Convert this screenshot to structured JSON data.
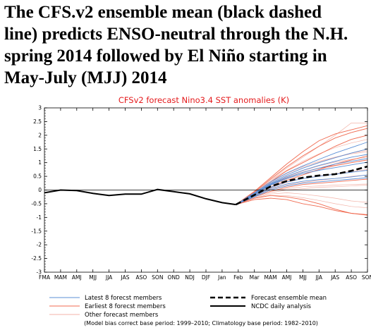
{
  "headline": [
    "The CFS.v2 ensemble mean (black dashed",
    "line) predicts ENSO-neutral through the N.H.",
    "spring 2014 followed by El Niño starting in",
    "May-July (MJJ) 2014"
  ],
  "colors": {
    "latest": "#5b8fd6",
    "earliest": "#f06a50",
    "other": "#f3b3a8",
    "mean": "#000000",
    "observed": "#000000",
    "title": "#e41a1c"
  },
  "legend": {
    "latest_label": "Latest 8 forecst members",
    "earliest_label": "Earliest 8 forecst members",
    "other_label": "Other forecast members",
    "mean_label": "Forecast ensemble mean",
    "observed_label": "NCDC daily analysis"
  },
  "footnote": "(Model bias correct base period: 1999–2010; Climatology base period: 1982–2010)",
  "chart_data": {
    "type": "line",
    "title": "CFSv2 forecast Nino3.4 SST anomalies (K)",
    "categories": [
      "FMA",
      "MAM",
      "AMJ",
      "MJJ",
      "JJA",
      "JAS",
      "ASO",
      "SON",
      "OND",
      "NDJ",
      "DJF",
      "Jan",
      "Feb",
      "Mar",
      "MAM",
      "AMJ",
      "MJJ",
      "JJA",
      "JAS",
      "ASO",
      "SON"
    ],
    "ylim": [
      -3,
      3
    ],
    "yticks": [
      -3,
      -2.5,
      -2,
      -1.5,
      -1,
      -0.5,
      0,
      0.5,
      1,
      1.5,
      2,
      2.5,
      3
    ],
    "grid": false,
    "legend_position": "bottom",
    "observed": {
      "x_index": [
        0,
        1,
        2,
        3,
        4,
        5,
        6,
        7,
        8,
        9,
        10,
        11,
        11.85
      ],
      "values": [
        -0.1,
        0.0,
        -0.02,
        -0.12,
        -0.2,
        -0.15,
        -0.15,
        0.02,
        -0.06,
        -0.14,
        -0.32,
        -0.46,
        -0.53
      ]
    },
    "ensemble_mean": {
      "x_index": [
        11.85,
        13,
        14,
        15,
        16,
        17,
        18,
        19,
        20
      ],
      "values": [
        -0.53,
        -0.18,
        0.13,
        0.33,
        0.45,
        0.53,
        0.58,
        0.7,
        0.86
      ]
    },
    "members": {
      "x_index": [
        11.85,
        13,
        14,
        15,
        16,
        17,
        18,
        19,
        20
      ],
      "latest": [
        [
          -0.53,
          -0.12,
          0.25,
          0.55,
          0.8,
          1.0,
          1.18,
          1.35,
          1.5
        ],
        [
          -0.53,
          -0.15,
          0.2,
          0.45,
          0.65,
          0.8,
          0.95,
          1.05,
          1.15
        ],
        [
          -0.53,
          -0.2,
          0.1,
          0.3,
          0.42,
          0.5,
          0.58,
          0.65,
          0.72
        ],
        [
          -0.53,
          -0.1,
          0.3,
          0.62,
          0.88,
          1.12,
          1.35,
          1.55,
          1.75
        ],
        [
          -0.53,
          -0.22,
          0.05,
          0.22,
          0.32,
          0.38,
          0.42,
          0.48,
          0.55
        ],
        [
          -0.53,
          -0.17,
          0.18,
          0.42,
          0.6,
          0.72,
          0.82,
          0.92,
          1.02
        ],
        [
          -0.53,
          -0.12,
          0.22,
          0.5,
          0.72,
          0.9,
          1.05,
          1.2,
          1.3
        ],
        [
          -0.53,
          -0.25,
          0.0,
          0.15,
          0.25,
          0.3,
          0.35,
          0.4,
          0.45
        ]
      ],
      "earliest": [
        [
          -0.53,
          -0.05,
          0.45,
          0.95,
          1.4,
          1.8,
          2.05,
          2.2,
          2.35
        ],
        [
          -0.53,
          -0.2,
          0.1,
          0.35,
          0.55,
          0.75,
          0.95,
          1.1,
          1.25
        ],
        [
          -0.53,
          -0.3,
          -0.2,
          -0.25,
          -0.35,
          -0.5,
          -0.7,
          -0.85,
          -0.9
        ],
        [
          -0.53,
          -0.1,
          0.3,
          0.7,
          1.0,
          1.3,
          1.6,
          1.85,
          2.0
        ],
        [
          -0.53,
          -0.25,
          -0.05,
          0.1,
          0.2,
          0.25,
          0.3,
          0.35,
          0.4
        ],
        [
          -0.53,
          -0.15,
          0.2,
          0.45,
          0.65,
          0.8,
          0.9,
          1.0,
          1.1
        ],
        [
          -0.53,
          -0.35,
          -0.3,
          -0.35,
          -0.5,
          -0.6,
          -0.75,
          -0.85,
          -0.92
        ],
        [
          -0.53,
          -0.08,
          0.4,
          0.85,
          1.25,
          1.6,
          1.9,
          2.1,
          2.25
        ]
      ],
      "other": [
        [
          -0.53,
          -0.18,
          0.15,
          0.4,
          0.6,
          0.75,
          0.88,
          1.0,
          1.1
        ],
        [
          -0.53,
          -0.28,
          -0.1,
          0.0,
          0.05,
          0.1,
          0.12,
          0.15,
          0.18
        ],
        [
          -0.53,
          -0.12,
          0.25,
          0.55,
          0.8,
          1.02,
          1.2,
          1.35,
          1.45
        ],
        [
          -0.53,
          -0.3,
          -0.15,
          -0.1,
          -0.15,
          -0.22,
          -0.3,
          -0.4,
          -0.45
        ],
        [
          -0.53,
          -0.2,
          0.08,
          0.28,
          0.42,
          0.52,
          0.6,
          0.68,
          0.75
        ],
        [
          -0.53,
          -0.15,
          0.35,
          0.8,
          1.2,
          1.6,
          2.0,
          2.45,
          2.45
        ],
        [
          -0.53,
          -0.22,
          0.02,
          0.18,
          0.28,
          0.35,
          0.42,
          0.5,
          0.55
        ],
        [
          -0.53,
          -0.1,
          0.28,
          0.6,
          0.85,
          1.05,
          1.2,
          1.32,
          1.4
        ],
        [
          -0.53,
          -0.25,
          -0.05,
          0.05,
          0.12,
          0.15,
          0.18,
          0.2,
          0.22
        ],
        [
          -0.53,
          -0.16,
          0.2,
          0.48,
          0.7,
          0.88,
          1.02,
          1.12,
          1.2
        ],
        [
          -0.53,
          -0.3,
          -0.2,
          -0.2,
          -0.28,
          -0.38,
          -0.5,
          -0.6,
          -0.65
        ],
        [
          -0.53,
          -0.08,
          0.35,
          0.72,
          1.05,
          1.32,
          1.55,
          1.72,
          1.85
        ]
      ]
    }
  }
}
